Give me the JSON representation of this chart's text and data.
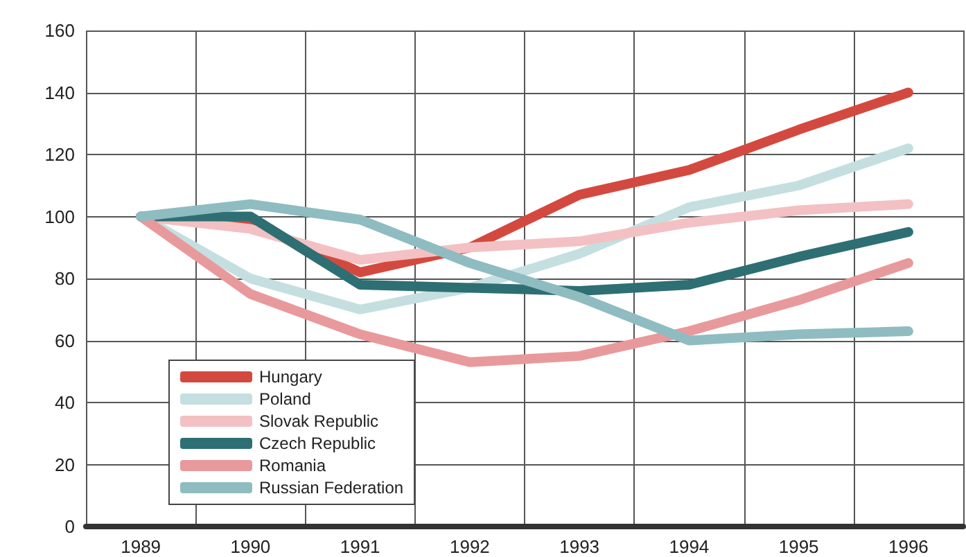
{
  "chart_data": {
    "type": "line",
    "categories": [
      "1989",
      "1990",
      "1991",
      "1992",
      "1993",
      "1994",
      "1995",
      "1996"
    ],
    "series": [
      {
        "name": "Hungary",
        "color": "#d4493f",
        "values": [
          100,
          98,
          82,
          90,
          107,
          115,
          128,
          140
        ]
      },
      {
        "name": "Poland",
        "color": "#c5dfe0",
        "values": [
          100,
          80,
          70,
          77,
          88,
          103,
          110,
          122
        ]
      },
      {
        "name": "Slovak Republic",
        "color": "#f3c1c3",
        "values": [
          100,
          96,
          86,
          90,
          92,
          98,
          102,
          104
        ]
      },
      {
        "name": "Czech Republic",
        "color": "#2e6f73",
        "values": [
          100,
          100,
          78,
          77,
          76,
          78,
          87,
          95
        ]
      },
      {
        "name": "Romania",
        "color": "#e8999c",
        "values": [
          100,
          75,
          62,
          53,
          55,
          63,
          73,
          85
        ]
      },
      {
        "name": "Russian Federation",
        "color": "#8fbcc0",
        "values": [
          100,
          104,
          99,
          85,
          74,
          60,
          62,
          63
        ]
      }
    ],
    "ylim": [
      0,
      160
    ],
    "yticks": [
      0,
      20,
      40,
      60,
      80,
      100,
      120,
      140,
      160
    ],
    "grid": true,
    "legend": "bottom left",
    "marker": "none",
    "line_style": "solid"
  }
}
